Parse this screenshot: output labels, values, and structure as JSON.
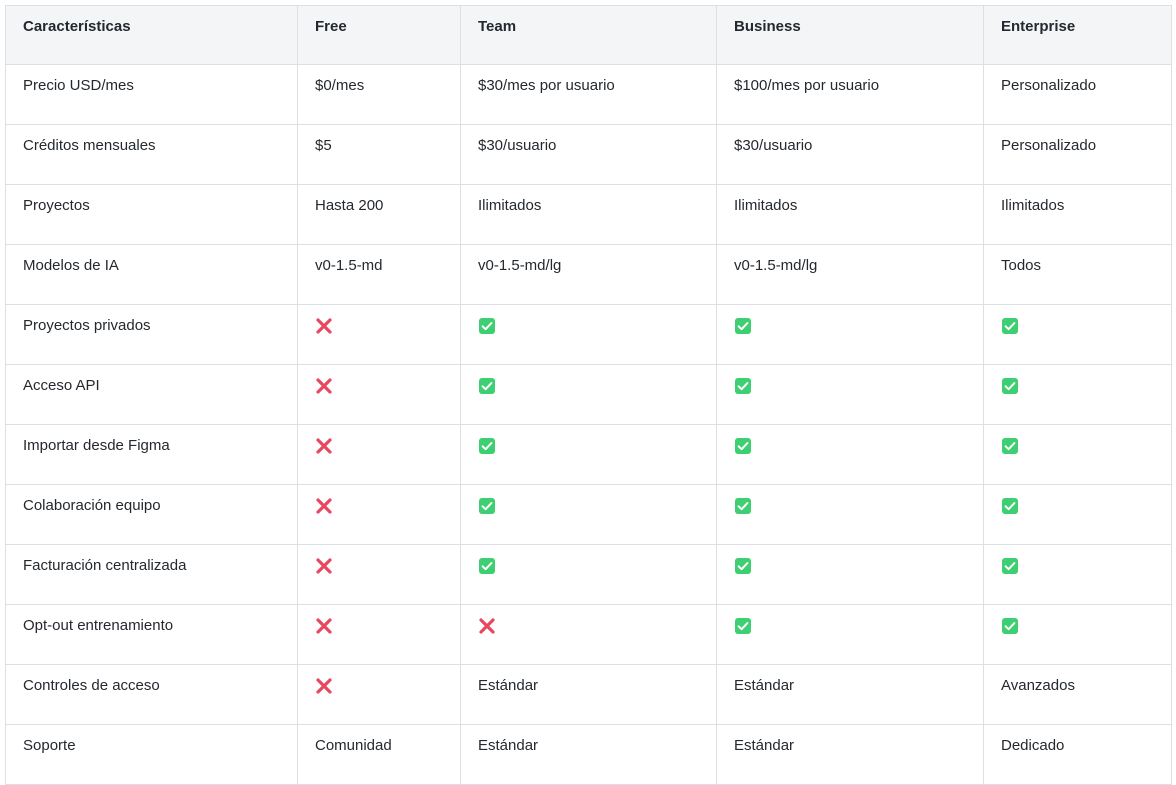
{
  "header": [
    "Características",
    "Free",
    "Team",
    "Business",
    "Enterprise"
  ],
  "rows": [
    {
      "feature": "Precio USD/mes",
      "cells": [
        {
          "type": "text",
          "value": "$0/mes"
        },
        {
          "type": "text",
          "value": "$30/mes por usuario"
        },
        {
          "type": "text",
          "value": "$100/mes por usuario"
        },
        {
          "type": "text",
          "value": "Personalizado"
        }
      ]
    },
    {
      "feature": "Créditos mensuales",
      "cells": [
        {
          "type": "text",
          "value": "$5"
        },
        {
          "type": "text",
          "value": "$30/usuario"
        },
        {
          "type": "text",
          "value": "$30/usuario"
        },
        {
          "type": "text",
          "value": "Personalizado"
        }
      ]
    },
    {
      "feature": "Proyectos",
      "cells": [
        {
          "type": "text",
          "value": "Hasta 200"
        },
        {
          "type": "text",
          "value": "Ilimitados"
        },
        {
          "type": "text",
          "value": "Ilimitados"
        },
        {
          "type": "text",
          "value": "Ilimitados"
        }
      ]
    },
    {
      "feature": "Modelos de IA",
      "cells": [
        {
          "type": "text",
          "value": "v0-1.5-md"
        },
        {
          "type": "text",
          "value": "v0-1.5-md/lg"
        },
        {
          "type": "text",
          "value": "v0-1.5-md/lg"
        },
        {
          "type": "text",
          "value": "Todos"
        }
      ]
    },
    {
      "feature": "Proyectos privados",
      "cells": [
        {
          "type": "icon",
          "icon": "cross-icon"
        },
        {
          "type": "icon",
          "icon": "check-icon"
        },
        {
          "type": "icon",
          "icon": "check-icon"
        },
        {
          "type": "icon",
          "icon": "check-icon"
        }
      ]
    },
    {
      "feature": "Acceso API",
      "cells": [
        {
          "type": "icon",
          "icon": "cross-icon"
        },
        {
          "type": "icon",
          "icon": "check-icon"
        },
        {
          "type": "icon",
          "icon": "check-icon"
        },
        {
          "type": "icon",
          "icon": "check-icon"
        }
      ]
    },
    {
      "feature": "Importar desde Figma",
      "cells": [
        {
          "type": "icon",
          "icon": "cross-icon"
        },
        {
          "type": "icon",
          "icon": "check-icon"
        },
        {
          "type": "icon",
          "icon": "check-icon"
        },
        {
          "type": "icon",
          "icon": "check-icon"
        }
      ]
    },
    {
      "feature": "Colaboración equipo",
      "cells": [
        {
          "type": "icon",
          "icon": "cross-icon"
        },
        {
          "type": "icon",
          "icon": "check-icon"
        },
        {
          "type": "icon",
          "icon": "check-icon"
        },
        {
          "type": "icon",
          "icon": "check-icon"
        }
      ]
    },
    {
      "feature": "Facturación centralizada",
      "cells": [
        {
          "type": "icon",
          "icon": "cross-icon"
        },
        {
          "type": "icon",
          "icon": "check-icon"
        },
        {
          "type": "icon",
          "icon": "check-icon"
        },
        {
          "type": "icon",
          "icon": "check-icon"
        }
      ]
    },
    {
      "feature": "Opt-out entrenamiento",
      "cells": [
        {
          "type": "icon",
          "icon": "cross-icon"
        },
        {
          "type": "icon",
          "icon": "cross-icon"
        },
        {
          "type": "icon",
          "icon": "check-icon"
        },
        {
          "type": "icon",
          "icon": "check-icon"
        }
      ]
    },
    {
      "feature": "Controles de acceso",
      "cells": [
        {
          "type": "icon",
          "icon": "cross-icon"
        },
        {
          "type": "text",
          "value": "Estándar"
        },
        {
          "type": "text",
          "value": "Estándar"
        },
        {
          "type": "text",
          "value": "Avanzados"
        }
      ]
    },
    {
      "feature": "Soporte",
      "cells": [
        {
          "type": "text",
          "value": "Comunidad"
        },
        {
          "type": "text",
          "value": "Estándar"
        },
        {
          "type": "text",
          "value": "Estándar"
        },
        {
          "type": "text",
          "value": "Dedicado"
        }
      ]
    }
  ],
  "colors": {
    "check": "#3ecf72",
    "cross": "#e8475f",
    "header_bg": "#f4f5f6",
    "border": "#dcdfe3"
  }
}
